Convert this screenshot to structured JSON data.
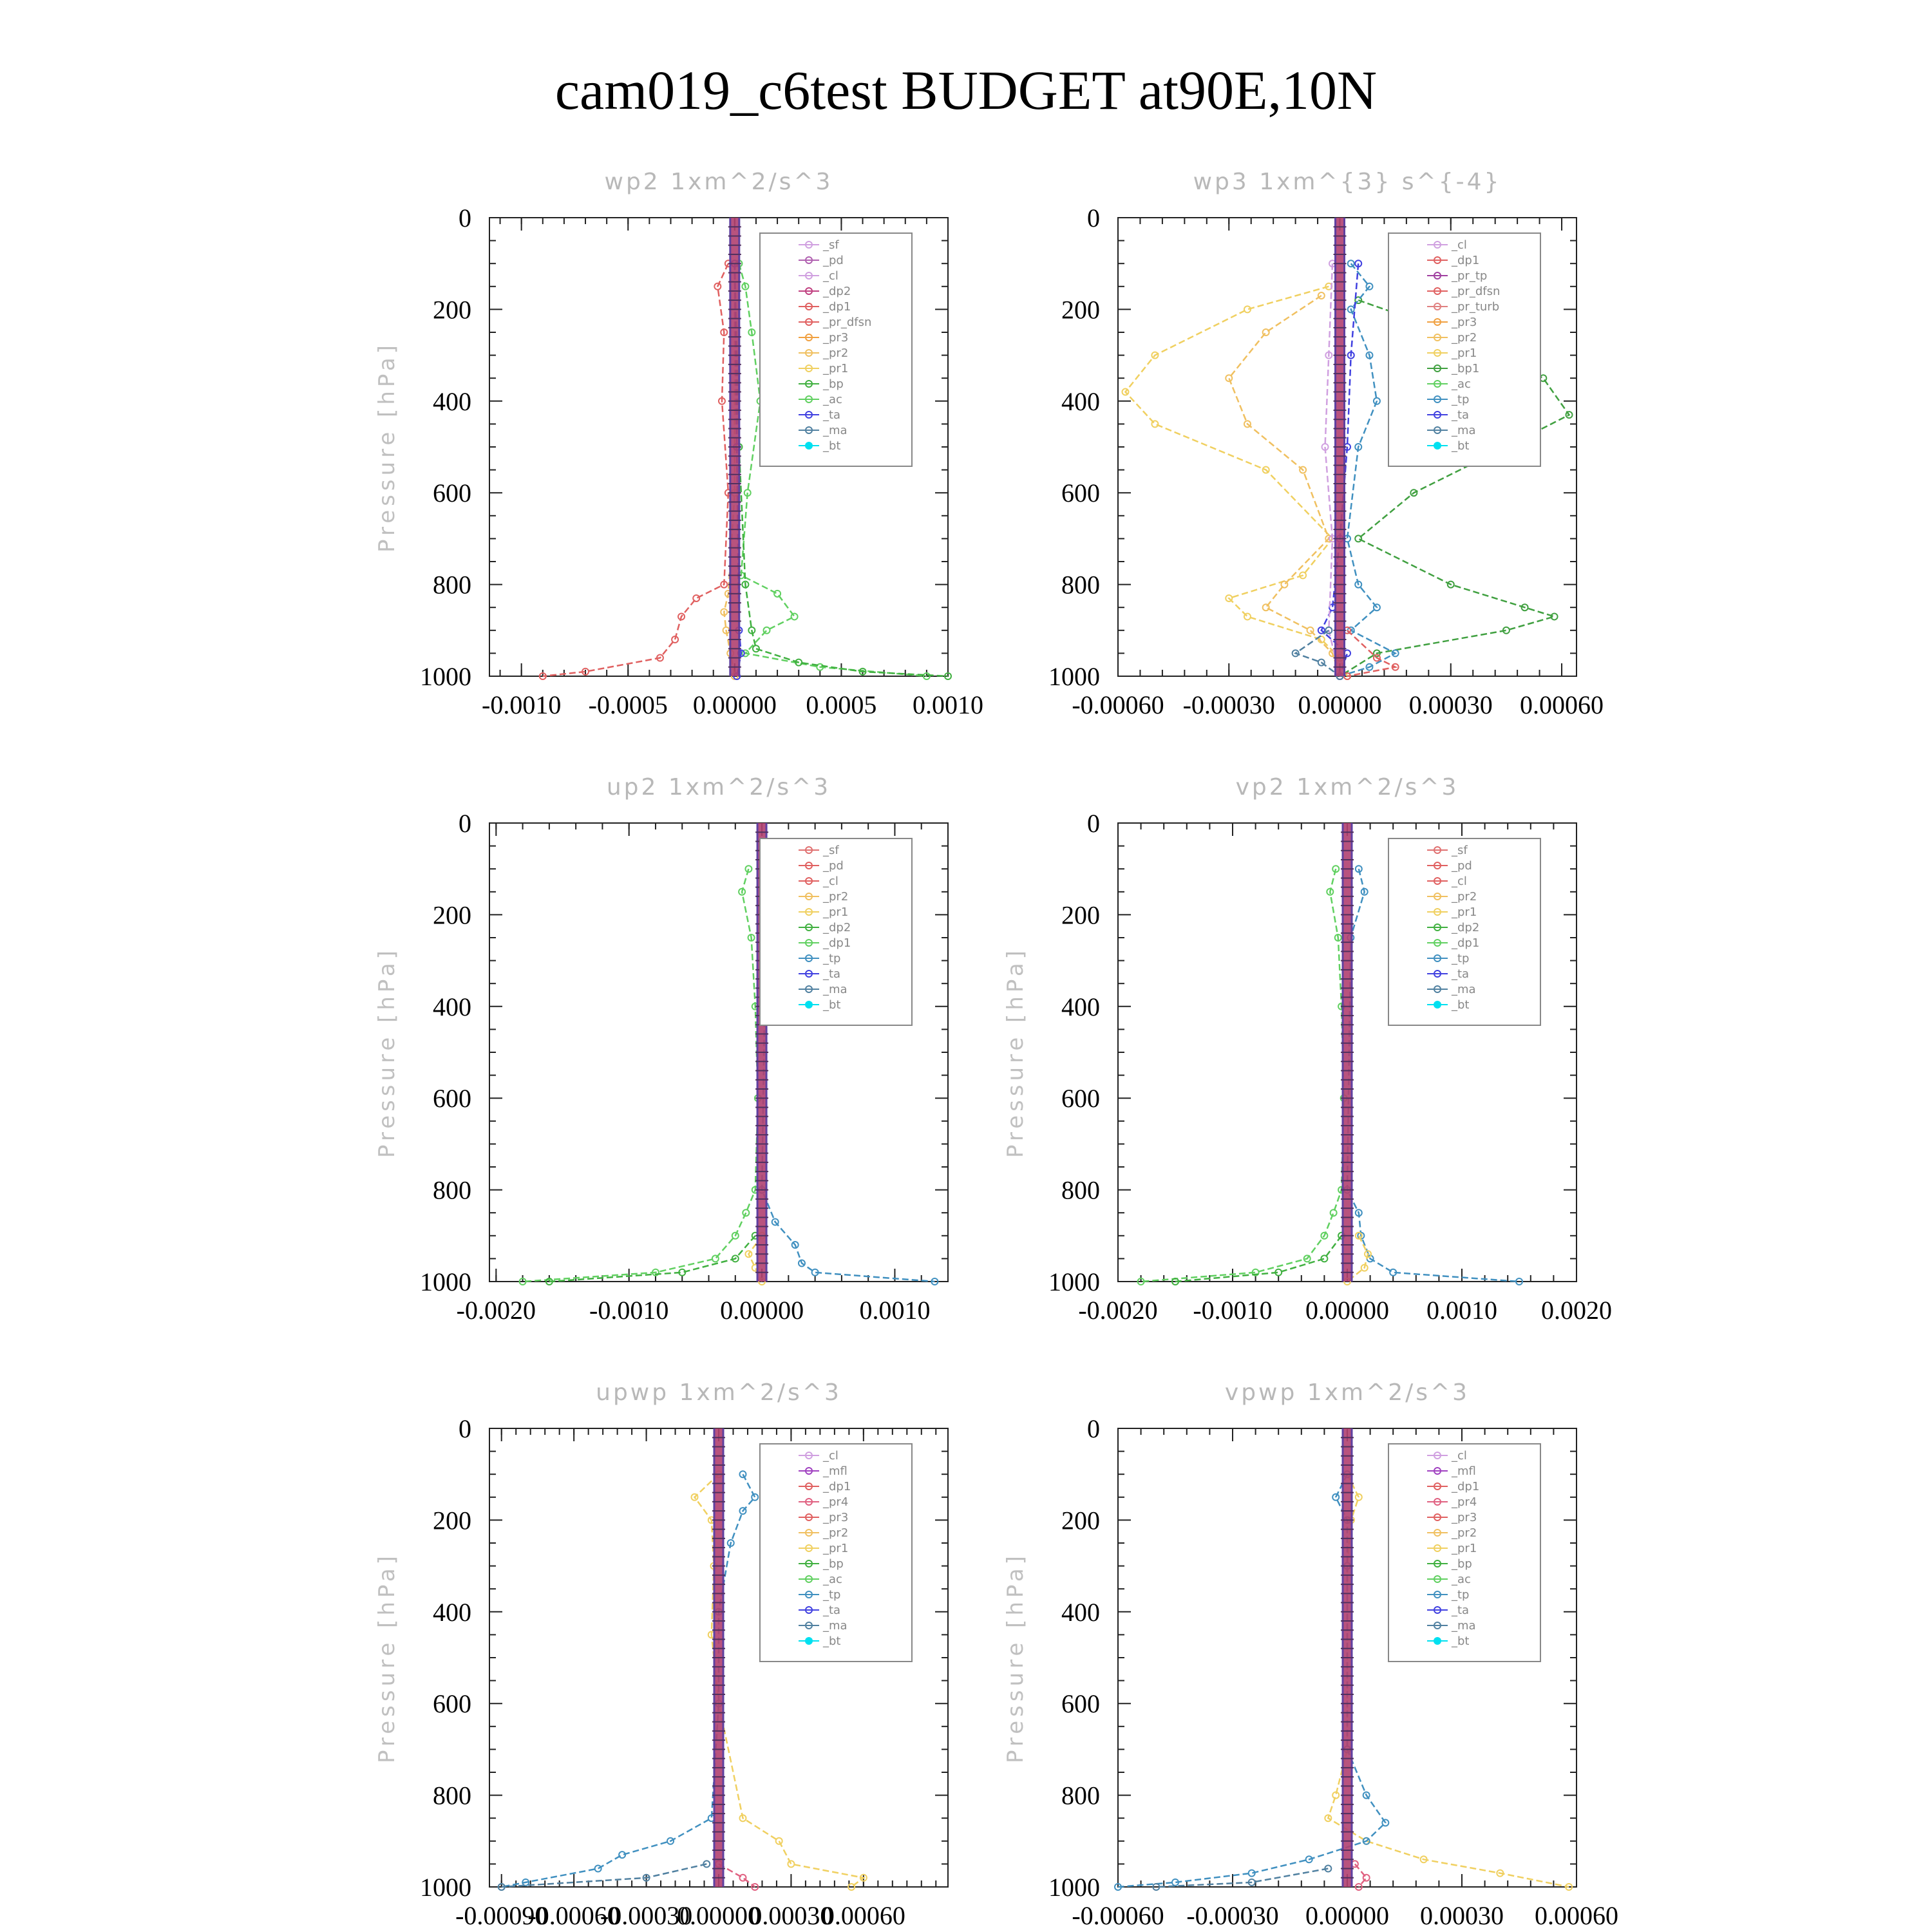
{
  "title": "cam019_c6test  BUDGET at90E,10N",
  "colors": {
    "sf": "#e07070",
    "pd": "#b060b0",
    "cl": "#d0a0e0",
    "dp2": "#c04080",
    "dp1": "#e06060",
    "pr_dfsn": "#e06060",
    "pr3": "#f0a040",
    "pr2": "#f0c060",
    "pr1": "#f0d060",
    "bp": "#40b040",
    "ac": "#60d060",
    "tp": "#4090c0",
    "ta": "#4040e0",
    "ma": "#5080a0",
    "bt": "#00e0f0",
    "pr_tp": "#a040a0",
    "pr_turb": "#e08080",
    "bp1": "#40a040",
    "mfl": "#a040c0",
    "pr4": "#e06080"
  },
  "chart_data": [
    {
      "type": "line",
      "title": "wp2  1xm^2/s^3",
      "ylabel": "Pressure [hPa]",
      "ylim": [
        1000,
        0
      ],
      "yticks": [
        "0",
        "200",
        "400",
        "600",
        "800",
        "1000"
      ],
      "xlim": [
        -0.00115,
        0.001
      ],
      "xticks": [
        -0.001,
        -0.0005,
        0.0,
        0.0005,
        0.001
      ],
      "xtick_labels": [
        "-0.0010",
        "-0.0005",
        "0.00000",
        "0.0005",
        "0.0010"
      ],
      "legend": [
        "_sf",
        "_pd",
        "_cl",
        "_dp2",
        "_dp1",
        "_pr_dfsn",
        "_pr3",
        "_pr2",
        "_pr1",
        "_bp",
        "_ac",
        "_ta",
        "_ma",
        "_bt"
      ],
      "legend_keys": [
        "cl",
        "pd",
        "cl",
        "dp2",
        "dp1",
        "pr_dfsn",
        "pr3",
        "pr2",
        "pr1",
        "bp",
        "ac",
        "ta",
        "ma",
        "bt"
      ],
      "series": [
        {
          "key": "dp1",
          "p": [
            100,
            150,
            250,
            400,
            600,
            800,
            830,
            870,
            920,
            960,
            990,
            1000
          ],
          "x": [
            -3e-05,
            -8e-05,
            -5e-05,
            -6e-05,
            -3e-05,
            -5e-05,
            -0.00018,
            -0.00025,
            -0.00028,
            -0.00035,
            -0.0007,
            -0.0009
          ]
        },
        {
          "key": "ac",
          "p": [
            100,
            150,
            250,
            400,
            600,
            780,
            820,
            870,
            900,
            950,
            980,
            1000
          ],
          "x": [
            2e-05,
            5e-05,
            8e-05,
            0.00012,
            6e-05,
            3e-05,
            0.0002,
            0.00028,
            0.00015,
            5e-05,
            0.0004,
            0.0009
          ]
        },
        {
          "key": "bp",
          "p": [
            100,
            500,
            800,
            900,
            940,
            970,
            990,
            1000
          ],
          "x": [
            0.0,
            2e-05,
            5e-05,
            8e-05,
            0.0001,
            0.0003,
            0.0006,
            0.001
          ]
        },
        {
          "key": "pr2",
          "p": [
            100,
            600,
            820,
            860,
            900,
            950,
            1000
          ],
          "x": [
            0.0,
            0.0,
            -3e-05,
            -5e-05,
            -4e-05,
            -2e-05,
            0.0
          ]
        },
        {
          "key": "ta",
          "p": [
            100,
            500,
            900,
            950,
            1000
          ],
          "x": [
            0.0,
            1e-05,
            2e-05,
            3e-05,
            1e-05
          ]
        }
      ]
    },
    {
      "type": "line",
      "title": "wp3  1xm^{3} s^{-4}",
      "ylabel": "",
      "ylim": [
        1000,
        0
      ],
      "yticks": [
        "0",
        "200",
        "400",
        "600",
        "800",
        "1000"
      ],
      "xlim": [
        -0.0006,
        0.00064
      ],
      "xticks": [
        -0.0006,
        -0.0003,
        0.0,
        0.0003,
        0.0006
      ],
      "xtick_labels": [
        "-0.00060",
        "-0.00030",
        "0.00000",
        "0.00030",
        "0.00060"
      ],
      "legend": [
        "_cl",
        "_dp1",
        "_pr_tp",
        "_pr_dfsn",
        "_pr_turb",
        "_pr3",
        "_pr2",
        "_pr1",
        "_bp1",
        "_ac",
        "_tp",
        "_ta",
        "_ma",
        "_bt"
      ],
      "legend_keys": [
        "cl",
        "dp1",
        "pr_tp",
        "pr_dfsn",
        "pr_turb",
        "pr3",
        "pr2",
        "pr1",
        "bp1",
        "ac",
        "tp",
        "ta",
        "ma",
        "bt"
      ],
      "series": [
        {
          "key": "pr1",
          "p": [
            150,
            200,
            300,
            380,
            450,
            550,
            700,
            780,
            830,
            870,
            920,
            960,
            1000
          ],
          "x": [
            -3e-05,
            -0.00025,
            -0.0005,
            -0.00058,
            -0.0005,
            -0.0002,
            -2e-05,
            -0.0001,
            -0.0003,
            -0.00025,
            -5e-05,
            0.0,
            2e-05
          ]
        },
        {
          "key": "pr2",
          "p": [
            170,
            250,
            350,
            450,
            550,
            700,
            800,
            850,
            900,
            950,
            1000
          ],
          "x": [
            -5e-05,
            -0.0002,
            -0.0003,
            -0.00025,
            -0.0001,
            -3e-05,
            -0.00015,
            -0.0002,
            -8e-05,
            -2e-05,
            0.0
          ]
        },
        {
          "key": "bp1",
          "p": [
            180,
            250,
            350,
            430,
            500,
            600,
            700,
            800,
            850,
            870,
            900,
            950,
            1000
          ],
          "x": [
            5e-05,
            0.0003,
            0.00055,
            0.00062,
            0.00045,
            0.0002,
            5e-05,
            0.0003,
            0.0005,
            0.00058,
            0.00045,
            0.0001,
            0.0
          ]
        },
        {
          "key": "tp",
          "p": [
            100,
            150,
            200,
            300,
            400,
            500,
            700,
            800,
            850,
            900,
            950,
            980,
            1000
          ],
          "x": [
            3e-05,
            8e-05,
            3e-05,
            8e-05,
            0.0001,
            5e-05,
            2e-05,
            5e-05,
            0.0001,
            3e-05,
            0.00015,
            8e-05,
            0.0
          ]
        },
        {
          "key": "ta",
          "p": [
            100,
            300,
            500,
            700,
            850,
            900,
            950,
            1000
          ],
          "x": [
            5e-05,
            3e-05,
            2e-05,
            0.0,
            -2e-05,
            -5e-05,
            2e-05,
            0.0
          ]
        },
        {
          "key": "cl",
          "p": [
            100,
            300,
            500,
            700,
            900,
            1000
          ],
          "x": [
            -2e-05,
            -3e-05,
            -4e-05,
            -2e-05,
            -3e-05,
            0.0
          ]
        },
        {
          "key": "ma",
          "p": [
            900,
            950,
            970,
            1000
          ],
          "x": [
            -3e-05,
            -0.00012,
            -5e-05,
            0.0
          ]
        },
        {
          "key": "pr_dfsn",
          "p": [
            900,
            960,
            980,
            1000
          ],
          "x": [
            2e-05,
            0.0001,
            0.00015,
            2e-05
          ]
        }
      ]
    },
    {
      "type": "line",
      "title": "up2  1xm^2/s^3",
      "ylabel": "Pressure [hPa]",
      "ylim": [
        1000,
        0
      ],
      "yticks": [
        "0",
        "200",
        "400",
        "600",
        "800",
        "1000"
      ],
      "xlim": [
        -0.00205,
        0.0014
      ],
      "xticks": [
        -0.002,
        -0.001,
        0.0,
        0.001
      ],
      "xtick_labels": [
        "-0.0020",
        "-0.0010",
        "0.00000",
        "0.0010"
      ],
      "legend": [
        "_sf",
        "_pd",
        "_cl",
        "_pr2",
        "_pr1",
        "_dp2",
        "_dp1",
        "_tp",
        "_ta",
        "_ma",
        "_bt"
      ],
      "legend_keys": [
        "sf",
        "dp1",
        "dp1",
        "pr2",
        "pr1",
        "bp",
        "ac",
        "tp",
        "ta",
        "ma",
        "bt"
      ],
      "series": [
        {
          "key": "ac",
          "p": [
            100,
            150,
            250,
            400,
            600,
            800,
            850,
            900,
            950,
            980,
            1000
          ],
          "x": [
            -0.0001,
            -0.00015,
            -8e-05,
            -5e-05,
            -3e-05,
            -5e-05,
            -0.00012,
            -0.0002,
            -0.00035,
            -0.0008,
            -0.0018
          ]
        },
        {
          "key": "bp",
          "p": [
            900,
            950,
            980,
            1000
          ],
          "x": [
            -5e-05,
            -0.0002,
            -0.0006,
            -0.0016
          ]
        },
        {
          "key": "tp",
          "p": [
            100,
            150,
            250,
            400,
            800,
            870,
            920,
            960,
            980,
            1000
          ],
          "x": [
            0.0001,
            0.00015,
            5e-05,
            2e-05,
            0.0,
            0.0001,
            0.00025,
            0.0003,
            0.0004,
            0.0013
          ]
        },
        {
          "key": "pr1",
          "p": [
            900,
            940,
            970,
            1000
          ],
          "x": [
            0.0,
            -0.0001,
            -5e-05,
            0.0
          ]
        }
      ]
    },
    {
      "type": "line",
      "title": "vp2  1xm^2/s^3",
      "ylabel": "Pressure [hPa]",
      "ylim": [
        1000,
        0
      ],
      "yticks": [
        "0",
        "200",
        "400",
        "600",
        "800",
        "1000"
      ],
      "xlim": [
        -0.002,
        0.002
      ],
      "xticks": [
        -0.002,
        -0.001,
        0.0,
        0.001,
        0.002
      ],
      "xtick_labels": [
        "-0.0020",
        "-0.0010",
        "0.00000",
        "0.0010",
        "0.0020"
      ],
      "legend": [
        "_sf",
        "_pd",
        "_cl",
        "_pr2",
        "_pr1",
        "_dp2",
        "_dp1",
        "_tp",
        "_ta",
        "_ma",
        "_bt"
      ],
      "legend_keys": [
        "sf",
        "dp1",
        "dp1",
        "pr2",
        "pr1",
        "bp",
        "ac",
        "tp",
        "ta",
        "ma",
        "bt"
      ],
      "series": [
        {
          "key": "ac",
          "p": [
            100,
            150,
            250,
            400,
            600,
            800,
            850,
            900,
            950,
            980,
            1000
          ],
          "x": [
            -0.0001,
            -0.00015,
            -8e-05,
            -5e-05,
            -3e-05,
            -5e-05,
            -0.00012,
            -0.0002,
            -0.00035,
            -0.0008,
            -0.0018
          ]
        },
        {
          "key": "bp",
          "p": [
            900,
            950,
            980,
            1000
          ],
          "x": [
            -5e-05,
            -0.0002,
            -0.0006,
            -0.0015
          ]
        },
        {
          "key": "tp",
          "p": [
            100,
            150,
            250,
            800,
            850,
            900,
            950,
            980,
            1000
          ],
          "x": [
            0.0001,
            0.00015,
            3e-05,
            0.0,
            0.0001,
            0.00012,
            0.0002,
            0.0004,
            0.0015
          ]
        },
        {
          "key": "pr1",
          "p": [
            900,
            940,
            970,
            1000
          ],
          "x": [
            0.0001,
            0.00018,
            0.00015,
            0.0
          ]
        }
      ]
    },
    {
      "type": "line",
      "title": "upwp  1xm^2/s^3",
      "ylabel": "Pressure [hPa]",
      "ylim": [
        1000,
        0
      ],
      "yticks": [
        "0",
        "200",
        "400",
        "600",
        "800",
        "1000"
      ],
      "xlim": [
        -0.00095,
        0.00095
      ],
      "xticks": [
        -0.0009,
        -0.0006,
        -0.0003,
        0.0,
        0.0003,
        0.0006
      ],
      "xtick_labels": [
        "-0.00090",
        "-0.00060",
        "-0.00030",
        "0.00000",
        "0.00030",
        "0.00060"
      ],
      "legend": [
        "_cl",
        "_mfl",
        "_dp1",
        "_pr4",
        "_pr3",
        "_pr2",
        "_pr1",
        "_bp",
        "_ac",
        "_tp",
        "_ta",
        "_ma",
        "_bt"
      ],
      "legend_keys": [
        "cl",
        "mfl",
        "dp1",
        "pr4",
        "dp1",
        "pr2",
        "pr1",
        "bp",
        "ac",
        "tp",
        "ta",
        "ma",
        "bt"
      ],
      "series": [
        {
          "key": "pr1",
          "p": [
            100,
            150,
            200,
            300,
            450,
            600,
            850,
            900,
            950,
            980,
            1000
          ],
          "x": [
            0.0,
            -0.0001,
            -3e-05,
            -2e-05,
            -3e-05,
            0.0,
            0.0001,
            0.00025,
            0.0003,
            0.0006,
            0.00055
          ]
        },
        {
          "key": "tp",
          "p": [
            100,
            150,
            180,
            250,
            400,
            600,
            850,
            900,
            930,
            960,
            990,
            1000
          ],
          "x": [
            0.0001,
            0.00015,
            0.0001,
            5e-05,
            0.0,
            0.0,
            -3e-05,
            -0.0002,
            -0.0004,
            -0.0005,
            -0.0008,
            -0.0009
          ]
        },
        {
          "key": "ma",
          "p": [
            950,
            980,
            1000
          ],
          "x": [
            -5e-05,
            -0.0003,
            -0.0009
          ]
        },
        {
          "key": "pr4",
          "p": [
            950,
            980,
            1000
          ],
          "x": [
            0.0,
            0.0001,
            0.00015
          ]
        }
      ]
    },
    {
      "type": "line",
      "title": "vpwp  1xm^2/s^3",
      "ylabel": "Pressure [hPa]",
      "ylim": [
        1000,
        0
      ],
      "yticks": [
        "0",
        "200",
        "400",
        "600",
        "800",
        "1000"
      ],
      "xlim": [
        -0.0006,
        0.0006
      ],
      "xticks": [
        -0.0006,
        -0.0003,
        0.0,
        0.0003,
        0.0006
      ],
      "xtick_labels": [
        "-0.00060",
        "-0.00030",
        "0.00000",
        "0.00030",
        "0.00060"
      ],
      "legend": [
        "_cl",
        "_mfl",
        "_dp1",
        "_pr4",
        "_pr3",
        "_pr2",
        "_pr1",
        "_bp",
        "_ac",
        "_tp",
        "_ta",
        "_ma",
        "_bt"
      ],
      "legend_keys": [
        "cl",
        "mfl",
        "dp1",
        "pr4",
        "dp1",
        "pr2",
        "pr1",
        "bp",
        "ac",
        "tp",
        "ta",
        "ma",
        "bt"
      ],
      "series": [
        {
          "key": "pr1",
          "p": [
            100,
            150,
            200,
            300,
            700,
            800,
            850,
            900,
            940,
            970,
            1000
          ],
          "x": [
            0.0,
            3e-05,
            1e-05,
            0.0,
            0.0,
            -3e-05,
            -5e-05,
            5e-05,
            0.0002,
            0.0004,
            0.00058
          ]
        },
        {
          "key": "tp",
          "p": [
            100,
            150,
            200,
            300,
            700,
            800,
            860,
            900,
            940,
            970,
            990,
            1000
          ],
          "x": [
            0.0,
            -3e-05,
            0.0,
            0.0,
            0.0,
            5e-05,
            0.0001,
            5e-05,
            -0.0001,
            -0.00025,
            -0.00045,
            -0.0006
          ]
        },
        {
          "key": "pr4",
          "p": [
            950,
            980,
            1000
          ],
          "x": [
            2e-05,
            5e-05,
            3e-05
          ]
        },
        {
          "key": "ma",
          "p": [
            960,
            990,
            1000
          ],
          "x": [
            -5e-05,
            -0.00025,
            -0.0005
          ]
        }
      ]
    }
  ]
}
